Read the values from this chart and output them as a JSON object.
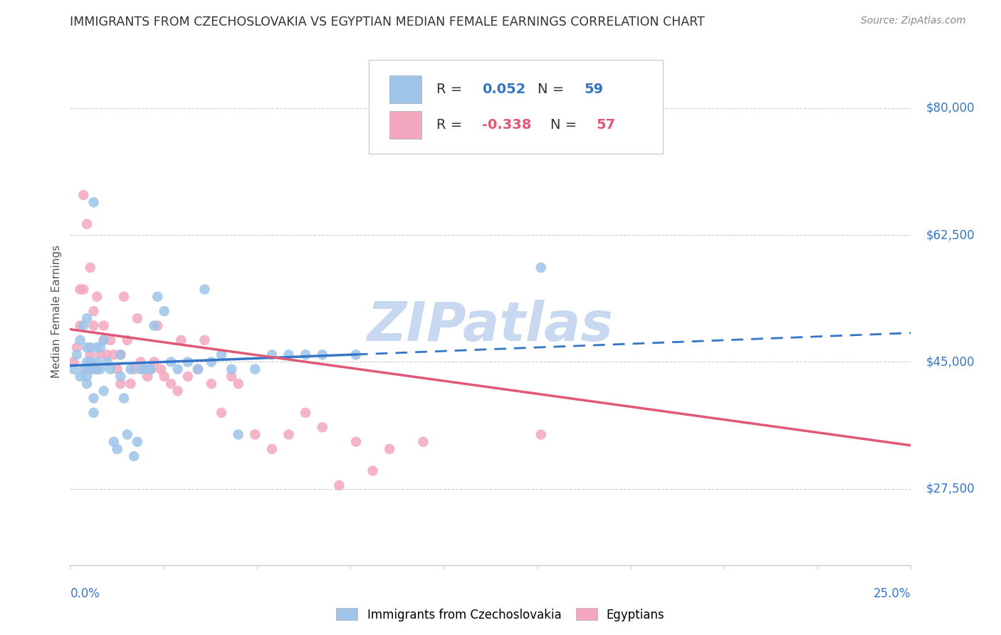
{
  "title": "IMMIGRANTS FROM CZECHOSLOVAKIA VS EGYPTIAN MEDIAN FEMALE EARNINGS CORRELATION CHART",
  "source": "Source: ZipAtlas.com",
  "ylabel": "Median Female Earnings",
  "yticks": [
    27500,
    45000,
    62500,
    80000
  ],
  "ytick_labels": [
    "$27,500",
    "$45,000",
    "$62,500",
    "$80,000"
  ],
  "xlim": [
    0.0,
    0.25
  ],
  "ylim": [
    17000,
    87000
  ],
  "series1_label": "Immigrants from Czechoslovakia",
  "series2_label": "Egyptians",
  "series1_color": "#9ec4e8",
  "series2_color": "#f4a8c0",
  "trendline1_color": "#3575c8",
  "trendline2_color": "#e05878",
  "background_color": "#ffffff",
  "watermark": "ZIPatlas",
  "watermark_color": "#c8d8f0",
  "trendline1_x0": 0.0,
  "trendline1_y0": 44500,
  "trendline1_x1": 0.25,
  "trendline1_y1": 49000,
  "trendline1_solid_end": 0.085,
  "trendline2_x0": 0.0,
  "trendline2_y0": 49500,
  "trendline2_x1": 0.25,
  "trendline2_y1": 33500,
  "series1_x": [
    0.001,
    0.002,
    0.003,
    0.003,
    0.004,
    0.004,
    0.005,
    0.005,
    0.005,
    0.005,
    0.005,
    0.006,
    0.006,
    0.006,
    0.007,
    0.007,
    0.007,
    0.007,
    0.008,
    0.008,
    0.008,
    0.009,
    0.009,
    0.01,
    0.01,
    0.011,
    0.012,
    0.013,
    0.014,
    0.015,
    0.015,
    0.016,
    0.017,
    0.018,
    0.019,
    0.02,
    0.021,
    0.022,
    0.023,
    0.024,
    0.025,
    0.026,
    0.028,
    0.03,
    0.032,
    0.035,
    0.038,
    0.04,
    0.042,
    0.045,
    0.048,
    0.05,
    0.055,
    0.06,
    0.065,
    0.07,
    0.075,
    0.085,
    0.14
  ],
  "series1_y": [
    44000,
    46000,
    43000,
    48000,
    44000,
    50000,
    42000,
    43000,
    45000,
    47000,
    51000,
    44000,
    45000,
    47000,
    38000,
    40000,
    44000,
    67000,
    44000,
    45000,
    47000,
    44000,
    47000,
    41000,
    48000,
    45000,
    44000,
    34000,
    33000,
    46000,
    43000,
    40000,
    35000,
    44000,
    32000,
    34000,
    44000,
    44000,
    44000,
    44000,
    50000,
    54000,
    52000,
    45000,
    44000,
    45000,
    44000,
    55000,
    45000,
    46000,
    44000,
    35000,
    44000,
    46000,
    46000,
    46000,
    46000,
    46000,
    58000
  ],
  "series2_x": [
    0.001,
    0.002,
    0.003,
    0.003,
    0.004,
    0.004,
    0.005,
    0.005,
    0.006,
    0.006,
    0.007,
    0.007,
    0.008,
    0.008,
    0.009,
    0.01,
    0.01,
    0.011,
    0.012,
    0.013,
    0.014,
    0.015,
    0.015,
    0.016,
    0.017,
    0.018,
    0.019,
    0.02,
    0.021,
    0.022,
    0.023,
    0.024,
    0.025,
    0.026,
    0.027,
    0.028,
    0.03,
    0.032,
    0.033,
    0.035,
    0.038,
    0.04,
    0.042,
    0.045,
    0.048,
    0.05,
    0.055,
    0.06,
    0.065,
    0.07,
    0.075,
    0.08,
    0.085,
    0.09,
    0.095,
    0.105,
    0.14
  ],
  "series2_y": [
    45000,
    47000,
    50000,
    55000,
    68000,
    55000,
    44000,
    64000,
    46000,
    58000,
    50000,
    52000,
    44000,
    54000,
    46000,
    50000,
    48000,
    46000,
    48000,
    46000,
    44000,
    46000,
    42000,
    54000,
    48000,
    42000,
    44000,
    51000,
    45000,
    44000,
    43000,
    44000,
    45000,
    50000,
    44000,
    43000,
    42000,
    41000,
    48000,
    43000,
    44000,
    48000,
    42000,
    38000,
    43000,
    42000,
    35000,
    33000,
    35000,
    38000,
    36000,
    28000,
    34000,
    30000,
    33000,
    34000,
    35000
  ]
}
